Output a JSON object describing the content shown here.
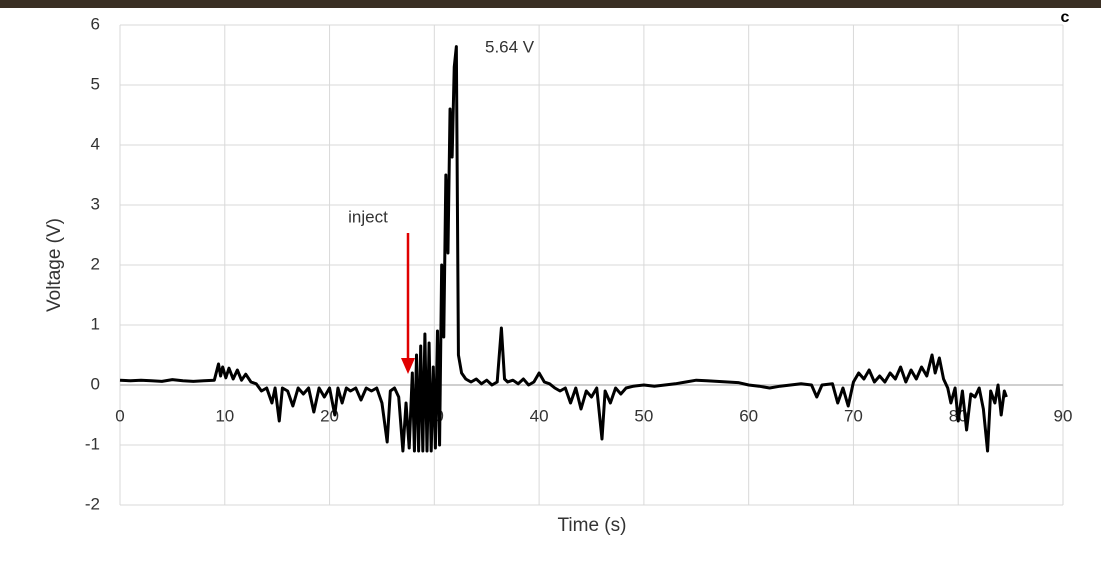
{
  "chart_data": {
    "type": "line",
    "x_label": "Time (s)",
    "y_label": "Voltage (V)",
    "annotations": [
      "5.64 V",
      "inject"
    ],
    "panel_label": "c",
    "color": "#000000",
    "grid": true,
    "xlim": [
      0,
      90
    ],
    "xticks": [
      0,
      10,
      20,
      30,
      40,
      50,
      60,
      70,
      80,
      90
    ],
    "ylim": [
      -2,
      6
    ],
    "yticks": [
      -2,
      -1,
      0,
      1,
      2,
      3,
      4,
      5,
      6
    ],
    "x": [
      0,
      1,
      2,
      3,
      4,
      5,
      6,
      7,
      8,
      9,
      9.4,
      9.6,
      9.8,
      10.1,
      10.4,
      10.8,
      11.2,
      11.6,
      12,
      12.5,
      13,
      13.5,
      14,
      14.5,
      14.8,
      15.2,
      15.5,
      16,
      16.5,
      17,
      17.5,
      18,
      18.5,
      19,
      19.5,
      20,
      20.5,
      20.8,
      21.2,
      21.6,
      22,
      22.5,
      23,
      23.5,
      24,
      24.5,
      25,
      25.5,
      25.8,
      26.2,
      26.6,
      27,
      27.3,
      27.6,
      27.9,
      28.1,
      28.3,
      28.5,
      28.7,
      28.9,
      29.1,
      29.3,
      29.5,
      29.7,
      29.9,
      30.1,
      30.3,
      30.5,
      30.7,
      30.9,
      31.1,
      31.3,
      31.5,
      31.7,
      31.9,
      32.1,
      32.3,
      32.6,
      33,
      33.5,
      34,
      34.5,
      35,
      35.5,
      36,
      36.4,
      36.7,
      37,
      37.5,
      38,
      38.5,
      39,
      39.5,
      40,
      40.5,
      41,
      41.5,
      42,
      42.5,
      43,
      43.5,
      44,
      44.5,
      45,
      45.5,
      46,
      46.3,
      46.8,
      47.3,
      47.8,
      48.3,
      49,
      50,
      51,
      52,
      53,
      54,
      55,
      56,
      57,
      58,
      59,
      60,
      61,
      62,
      63,
      64,
      65,
      66,
      66.5,
      67,
      68,
      68.5,
      69,
      69.5,
      70,
      70.5,
      71,
      71.5,
      72,
      72.5,
      73,
      73.5,
      74,
      74.5,
      75,
      75.5,
      76,
      76.5,
      77,
      77.5,
      77.8,
      78.2,
      78.6,
      79,
      79.3,
      79.7,
      80,
      80.4,
      80.8,
      81.2,
      81.6,
      82,
      82.4,
      82.8,
      83.1,
      83.5,
      83.8,
      84.1,
      84.4,
      84.6
    ],
    "values": [
      0.08,
      0.07,
      0.08,
      0.07,
      0.06,
      0.09,
      0.07,
      0.06,
      0.07,
      0.08,
      0.35,
      0.15,
      0.3,
      0.12,
      0.28,
      0.1,
      0.25,
      0.08,
      0.18,
      0.05,
      0.02,
      -0.1,
      -0.05,
      -0.3,
      -0.05,
      -0.6,
      -0.05,
      -0.1,
      -0.35,
      -0.05,
      -0.15,
      -0.05,
      -0.45,
      -0.05,
      -0.2,
      -0.05,
      -0.5,
      -0.05,
      -0.3,
      -0.05,
      -0.1,
      -0.05,
      -0.25,
      -0.05,
      -0.1,
      -0.05,
      -0.3,
      -0.95,
      -0.1,
      -0.05,
      -0.2,
      -1.1,
      -0.3,
      -1.05,
      0.2,
      -1.1,
      0.5,
      -1.1,
      0.65,
      -1.1,
      0.85,
      -1.1,
      0.7,
      -1.1,
      0.3,
      -1.05,
      0.9,
      -1.0,
      2.0,
      0.8,
      3.5,
      2.2,
      4.6,
      3.8,
      5.3,
      5.64,
      0.5,
      0.2,
      0.1,
      0.05,
      0.1,
      0.02,
      0.08,
      0.0,
      0.05,
      0.95,
      0.1,
      0.05,
      0.08,
      0.02,
      0.1,
      0.0,
      0.05,
      0.2,
      0.05,
      0.02,
      -0.05,
      -0.1,
      -0.05,
      -0.3,
      -0.05,
      -0.4,
      -0.1,
      -0.2,
      -0.05,
      -0.9,
      -0.1,
      -0.3,
      -0.05,
      -0.15,
      -0.05,
      -0.02,
      0.0,
      -0.02,
      0.0,
      0.02,
      0.05,
      0.08,
      0.07,
      0.06,
      0.05,
      0.04,
      0.0,
      -0.02,
      -0.05,
      -0.02,
      0.0,
      0.02,
      0.0,
      -0.2,
      0.0,
      0.02,
      -0.3,
      -0.05,
      -0.35,
      0.05,
      0.2,
      0.1,
      0.25,
      0.05,
      0.15,
      0.05,
      0.2,
      0.1,
      0.3,
      0.05,
      0.25,
      0.1,
      0.3,
      0.15,
      0.5,
      0.2,
      0.45,
      0.1,
      -0.05,
      -0.3,
      -0.05,
      -0.6,
      -0.1,
      -0.75,
      -0.15,
      -0.2,
      -0.05,
      -0.4,
      -1.1,
      -0.1,
      -0.3,
      0.0,
      -0.5,
      -0.1,
      -0.2
    ]
  }
}
